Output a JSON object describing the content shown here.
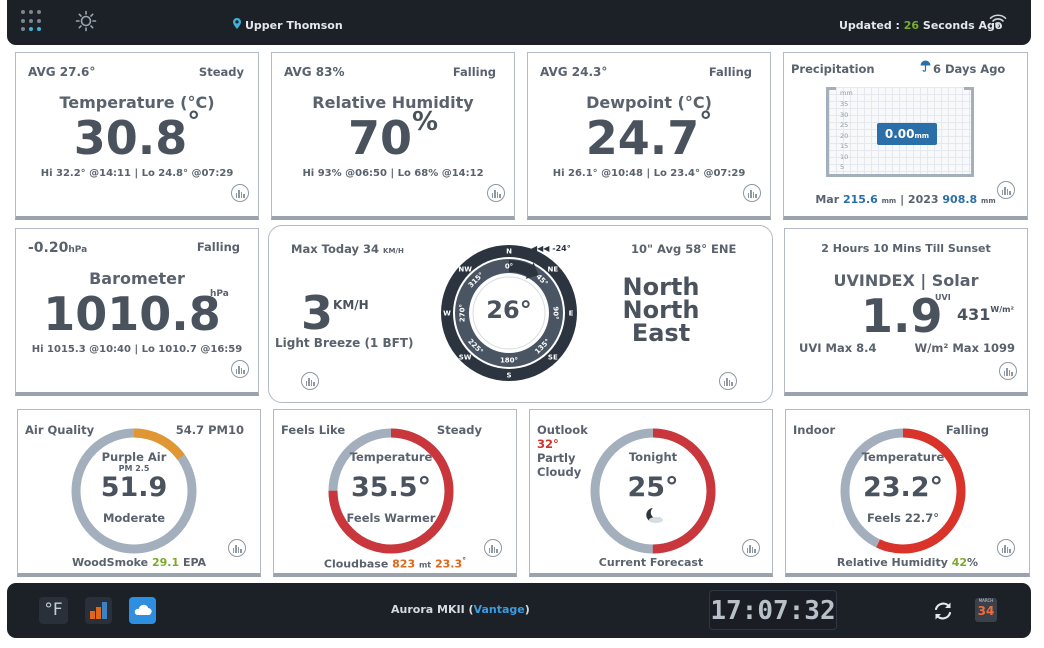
{
  "top": {
    "location": "Upper Thomson",
    "updated_prefix": "Updated : ",
    "updated_value": "26",
    "updated_suffix": " Seconds Ago"
  },
  "temp": {
    "avg": "AVG 27.6°",
    "trend": "Steady",
    "title": "Temperature (°C)",
    "value": "30.8",
    "unit": "°",
    "hilo": "Hi 32.2° @14:11 | Lo 24.8° @07:29"
  },
  "hum": {
    "avg": "AVG 83%",
    "trend": "Falling",
    "title": "Relative Humidity",
    "value": "70",
    "unit": "%",
    "hilo": "Hi 93% @06:50 | Lo 68% @14:12"
  },
  "dew": {
    "avg": "AVG 24.3°",
    "trend": "Falling",
    "title": "Dewpoint (°C)",
    "value": "24.7",
    "unit": "°",
    "hilo": "Hi 26.1° @10:48 | Lo 23.4° @07:29"
  },
  "precip": {
    "title": "Precipitation",
    "ago": "6 Days Ago",
    "scale_unit": "mm",
    "scale": [
      "35",
      "30",
      "25",
      "20",
      "15",
      "10",
      "5"
    ],
    "value": "0.00",
    "unit": "mm",
    "fill_level": 0,
    "month_label": "Mar",
    "month_value": "215.6",
    "month_unit": "mm",
    "year_label": "2023",
    "year_value": "908.8",
    "year_unit": "mm"
  },
  "baro": {
    "value_small": "-0.20",
    "unit_small": "hPa",
    "trend": "Falling",
    "title": "Barometer",
    "value": "1010.8",
    "unit": "hPa",
    "hilo": "Hi 1015.3 @10:40 | Lo 1010.7 @16:59"
  },
  "wind": {
    "max_today": "Max Today 34",
    "max_unit": "KM/H",
    "speed": "3",
    "speed_unit": "KM/H",
    "desc": "Light Breeze (1 BFT)",
    "gust": "◀◀◀ -24°",
    "avg": "10\" Avg 58° ENE",
    "dir_line1": "North",
    "dir_line2": "North",
    "dir_line3": "East",
    "degrees": "26°",
    "compass": [
      "N",
      "NE",
      "E",
      "SE",
      "S",
      "SW",
      "W",
      "NW"
    ],
    "inner_ticks": [
      "0°",
      "45°",
      "90°",
      "135°",
      "180°",
      "225°",
      "270°",
      "315°"
    ]
  },
  "uv": {
    "sunset": "2 Hours 10 Mins Till Sunset",
    "title": "UVINDEX | Solar",
    "uvi_label": "UVI",
    "uvi": "1.9",
    "solar": "431",
    "solar_unit": "W/m²",
    "uvi_max": "UVI Max 8.4",
    "solar_max": "W/m² Max 1099"
  },
  "aq": {
    "title": "Air Quality",
    "pm10": "54.7 PM10",
    "category": "Purple Air",
    "pm25_label": "PM 2.5",
    "value": "51.9",
    "level": "Moderate",
    "bottom_prefix": "WoodSmoke",
    "bottom_value": "29.1",
    "bottom_suffix": "EPA",
    "ring_fraction": 0.15
  },
  "feels": {
    "title": "Feels Like",
    "trend": "Steady",
    "label": "Temperature",
    "value": "35.5°",
    "desc": "Feels Warmer",
    "bottom_prefix": "Cloudbase",
    "bottom_value": "823",
    "bottom_unit": "mt",
    "bottom_temp": "23.3",
    "bottom_temp_unit": "°",
    "ring_fraction": 0.75
  },
  "outlook": {
    "title": "Outlook",
    "temp": "32°",
    "line2": "Partly",
    "line3": "Cloudy",
    "label": "Tonight",
    "value": "25°",
    "bottom": "Current Forecast",
    "ring_fraction": 0.5
  },
  "indoor": {
    "title": "Indoor",
    "trend": "Falling",
    "label": "Temperature",
    "value": "23.2°",
    "feels": "Feels 22.7°",
    "bottom_prefix": "Relative Humidity",
    "bottom_value": "42",
    "bottom_unit": "%",
    "ring_fraction": 0.57
  },
  "bottom": {
    "units": "°F",
    "model": "Aurora MKII (",
    "model_link": "Vantage",
    "model_close": ")",
    "time": "17:07:32",
    "cal_month": "MARCH",
    "cal_day": "34"
  },
  "colors": {
    "accent_green": "#7cab2b",
    "accent_blue": "#2a6fa8",
    "ring_track": "#a4afbd",
    "ring_red": "#c9373d",
    "ring_orange": "#e09633",
    "ring_indoor": "#d9332a"
  }
}
